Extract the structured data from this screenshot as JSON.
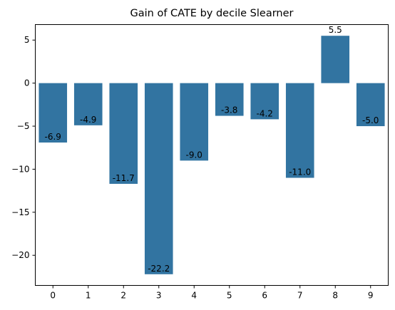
{
  "chart_data": {
    "type": "bar",
    "title": "Gain of CATE by decile Slearner",
    "xlabel": "",
    "ylabel": "",
    "categories": [
      "0",
      "1",
      "2",
      "3",
      "4",
      "5",
      "6",
      "7",
      "8",
      "9"
    ],
    "values": [
      -6.9,
      -4.9,
      -11.7,
      -22.2,
      -9.0,
      -3.8,
      -4.2,
      -11.0,
      5.5,
      -5.0
    ],
    "data_labels": [
      "-6.9",
      "-4.9",
      "-11.7",
      "-22.2",
      "-9.0",
      "-3.8",
      "-4.2",
      "-11.0",
      "5.5",
      "-5.0"
    ],
    "y_ticks": [
      5,
      0,
      -5,
      -10,
      -15,
      -20
    ],
    "y_tick_labels": [
      "5",
      "0",
      "−5",
      "−10",
      "−15",
      "−20"
    ],
    "ylim": [
      -23.5,
      6.8
    ],
    "grid": false,
    "legend": "none",
    "bar_color": "#3274a1"
  }
}
